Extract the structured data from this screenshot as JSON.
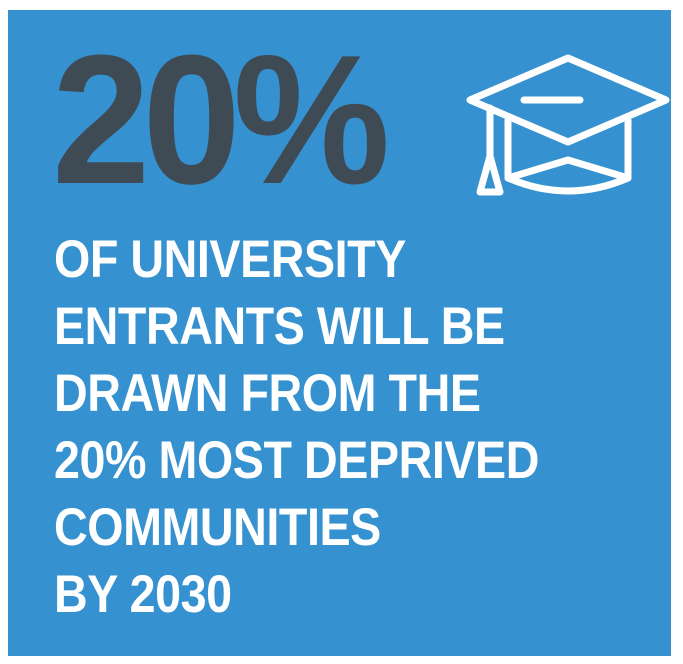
{
  "colors": {
    "panel_background": "#3591cf",
    "stat_text": "#3e4b55",
    "body_text": "#ffffff",
    "icon_stroke": "#ffffff"
  },
  "stat": {
    "value": "20%"
  },
  "icon": {
    "name": "graduation-cap-icon"
  },
  "headline": {
    "lines": [
      "OF UNIVERSITY",
      "ENTRANTS WILL BE",
      "DRAWN FROM THE",
      "20% MOST DEPRIVED",
      "COMMUNITIES",
      "BY 2030"
    ]
  }
}
